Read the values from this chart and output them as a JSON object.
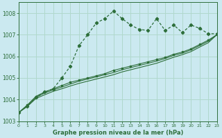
{
  "title": "Graphe pression niveau de la mer (hPa)",
  "bg_color": "#cbe9f0",
  "grid_color": "#b0d8cc",
  "line_color": "#2d6e3a",
  "xlim": [
    0,
    23
  ],
  "ylim": [
    1003,
    1008.5
  ],
  "yticks": [
    1003,
    1004,
    1005,
    1006,
    1007,
    1008
  ],
  "xticks": [
    0,
    1,
    2,
    3,
    4,
    5,
    6,
    7,
    8,
    9,
    10,
    11,
    12,
    13,
    14,
    15,
    16,
    17,
    18,
    19,
    20,
    21,
    22,
    23
  ],
  "series_jagged": [
    1003.4,
    1003.7,
    1004.1,
    1004.35,
    1004.5,
    1005.0,
    1005.55,
    1006.5,
    1007.0,
    1007.55,
    1007.75,
    1008.1,
    1007.75,
    1007.45,
    1007.25,
    1007.2,
    1007.75,
    1007.2,
    1007.45,
    1007.1,
    1007.45,
    1007.3,
    1007.05,
    1007.05
  ],
  "series_smooth1": [
    1003.4,
    1003.75,
    1004.15,
    1004.35,
    1004.5,
    1004.65,
    1004.8,
    1004.9,
    1005.0,
    1005.1,
    1005.2,
    1005.35,
    1005.45,
    1005.55,
    1005.65,
    1005.75,
    1005.85,
    1005.95,
    1006.1,
    1006.2,
    1006.35,
    1006.55,
    1006.75,
    1007.0
  ],
  "series_smooth2": [
    1003.4,
    1003.72,
    1004.1,
    1004.3,
    1004.45,
    1004.58,
    1004.72,
    1004.85,
    1004.95,
    1005.05,
    1005.15,
    1005.25,
    1005.38,
    1005.48,
    1005.58,
    1005.68,
    1005.78,
    1005.9,
    1006.05,
    1006.15,
    1006.3,
    1006.5,
    1006.7,
    1007.0
  ],
  "series_smooth3": [
    1003.4,
    1003.68,
    1004.05,
    1004.22,
    1004.38,
    1004.5,
    1004.63,
    1004.75,
    1004.85,
    1004.95,
    1005.05,
    1005.15,
    1005.28,
    1005.38,
    1005.48,
    1005.58,
    1005.68,
    1005.82,
    1005.96,
    1006.08,
    1006.22,
    1006.43,
    1006.63,
    1007.0
  ]
}
